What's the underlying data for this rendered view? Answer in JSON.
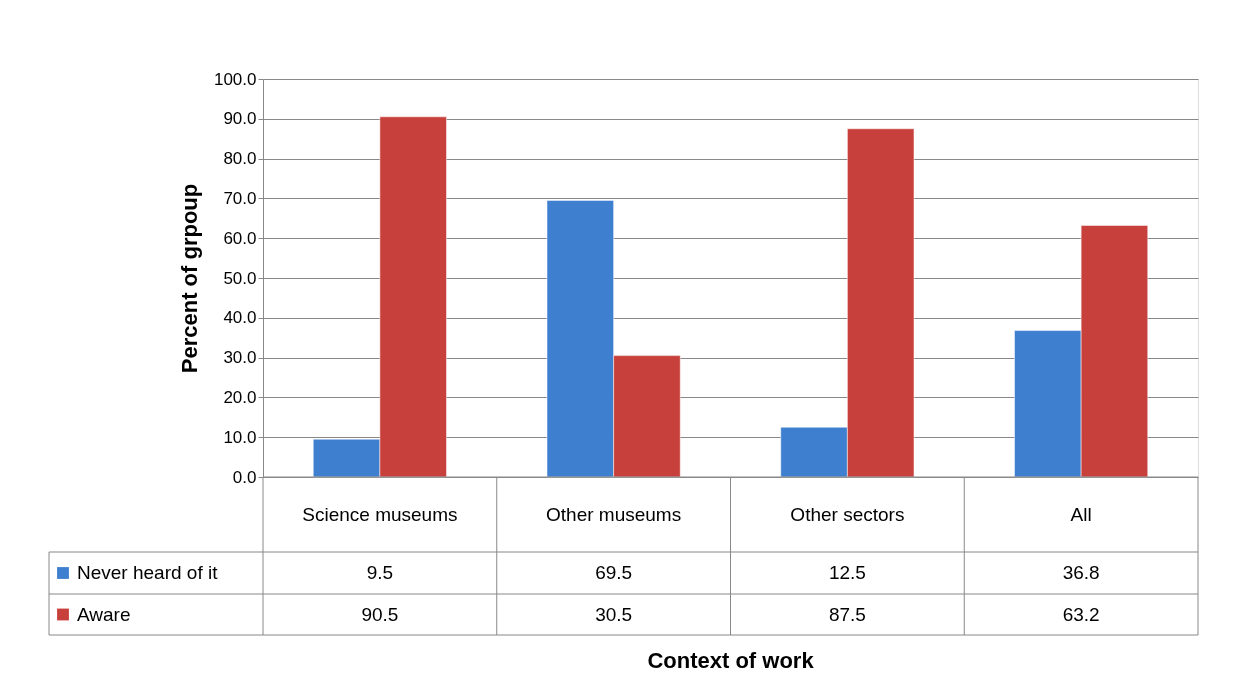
{
  "chart_data": {
    "type": "bar",
    "annotations": [
      "Context of work"
    ],
    "ylabel": "Percent of grpoup",
    "categories": [
      "Science museums",
      "Other museums",
      "Other sectors",
      "All"
    ],
    "series": [
      {
        "name": "Never heard of it",
        "color": "#3f7fcf",
        "values": [
          9.5,
          69.5,
          12.5,
          36.8
        ]
      },
      {
        "name": "Aware",
        "color": "#c8403c",
        "values": [
          90.5,
          30.5,
          87.5,
          63.2
        ]
      }
    ],
    "ylim": [
      0,
      100
    ],
    "yticks": [
      {
        "value": 0,
        "label": "0.0"
      },
      {
        "value": 10,
        "label": "10.0"
      },
      {
        "value": 20,
        "label": "20.0"
      },
      {
        "value": 30,
        "label": "30.0"
      },
      {
        "value": 40,
        "label": "40.0"
      },
      {
        "value": 50,
        "label": "50.0"
      },
      {
        "value": 60,
        "label": "60.0"
      },
      {
        "value": 70,
        "label": "70.0"
      },
      {
        "value": 80,
        "label": "80.0"
      },
      {
        "value": 90,
        "label": "90.0"
      },
      {
        "value": 100,
        "label": "100.0"
      }
    ],
    "grid": "y",
    "legend": "bottom",
    "data_labels": true
  }
}
